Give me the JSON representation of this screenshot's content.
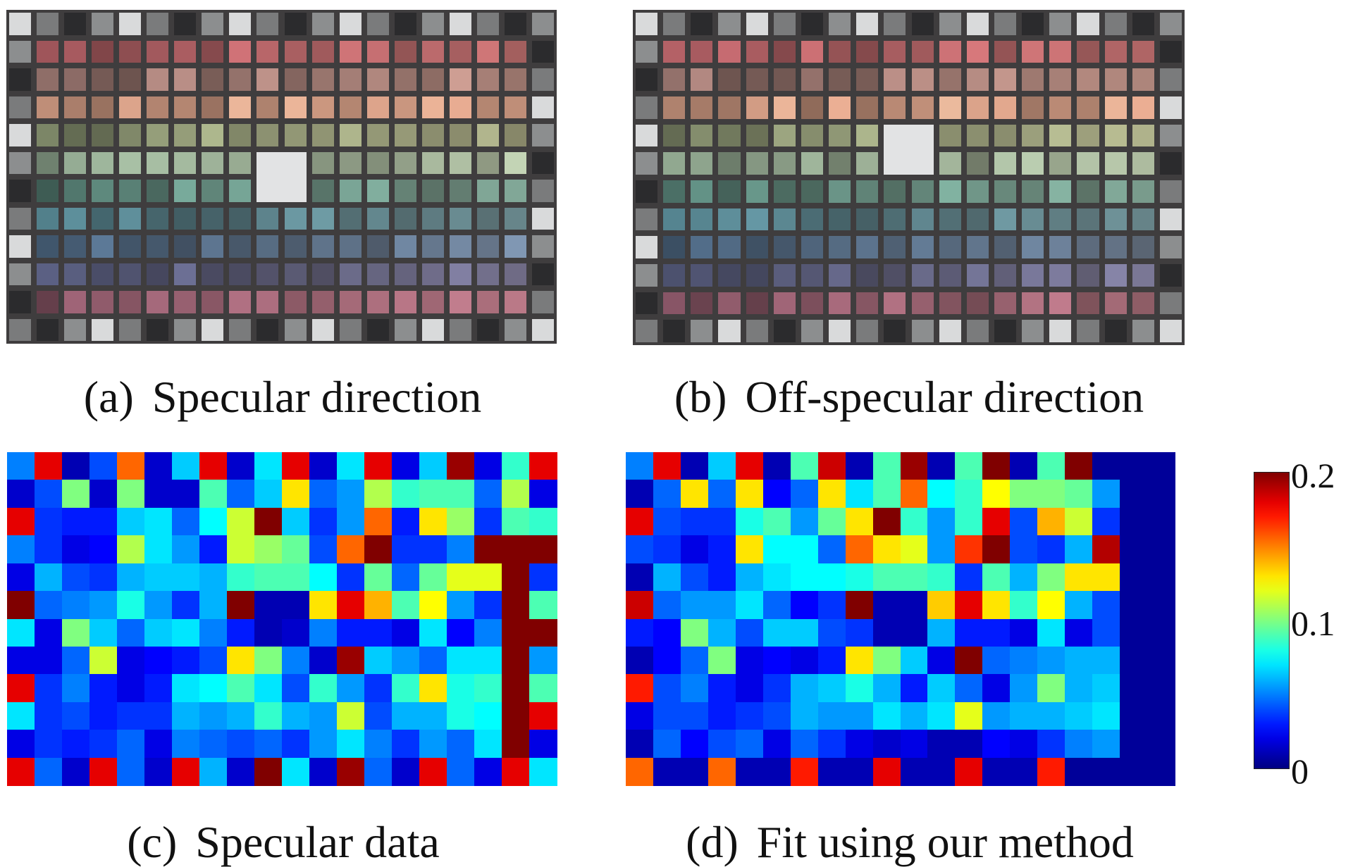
{
  "panels": [
    {
      "label": "(a)",
      "title": "Specular direction"
    },
    {
      "label": "(b)",
      "title": "Off-specular direction"
    },
    {
      "label": "(c)",
      "title": "Specular data"
    },
    {
      "label": "(d)",
      "title": "Fit using our method"
    }
  ],
  "colorbar": {
    "ticks": [
      "0.2",
      "0.1",
      "0"
    ],
    "range": [
      0,
      0.2
    ],
    "colormap": "jet"
  },
  "chart_data": [
    {
      "type": "heatmap",
      "title": "(c) Specular data",
      "rows": 12,
      "cols": 20,
      "vlim": [
        0,
        0.2
      ],
      "values": [
        [
          0.05,
          0.18,
          0.01,
          0.04,
          0.155,
          0.015,
          0.065,
          0.18,
          0.015,
          0.07,
          0.18,
          0.015,
          0.07,
          0.18,
          0.02,
          0.065,
          0.195,
          0.02,
          0.085,
          0.18
        ],
        [
          0.015,
          0.04,
          0.1,
          0.015,
          0.1,
          0.015,
          0.015,
          0.09,
          0.045,
          0.065,
          0.13,
          0.045,
          0.055,
          0.11,
          0.085,
          0.09,
          0.09,
          0.045,
          0.11,
          0.02
        ],
        [
          0.18,
          0.035,
          0.03,
          0.03,
          0.065,
          0.07,
          0.045,
          0.075,
          0.115,
          0.2,
          0.065,
          0.035,
          0.055,
          0.155,
          0.03,
          0.13,
          0.105,
          0.035,
          0.09,
          0.085
        ],
        [
          0.05,
          0.035,
          0.02,
          0.025,
          0.11,
          0.07,
          0.055,
          0.03,
          0.115,
          0.105,
          0.095,
          0.04,
          0.155,
          0.2,
          0.035,
          0.035,
          0.05,
          0.2,
          0.2,
          0.2
        ],
        [
          0.02,
          0.06,
          0.04,
          0.035,
          0.06,
          0.065,
          0.065,
          0.06,
          0.085,
          0.09,
          0.09,
          0.075,
          0.035,
          0.095,
          0.045,
          0.095,
          0.12,
          0.12,
          0.2,
          0.035
        ],
        [
          0.2,
          0.045,
          0.05,
          0.055,
          0.08,
          0.055,
          0.035,
          0.06,
          0.2,
          0.01,
          0.01,
          0.13,
          0.18,
          0.14,
          0.09,
          0.125,
          0.055,
          0.035,
          0.2,
          0.09
        ],
        [
          0.07,
          0.02,
          0.1,
          0.065,
          0.045,
          0.065,
          0.07,
          0.05,
          0.03,
          0.01,
          0.015,
          0.05,
          0.03,
          0.03,
          0.02,
          0.07,
          0.025,
          0.05,
          0.2,
          0.2
        ],
        [
          0.02,
          0.02,
          0.045,
          0.115,
          0.02,
          0.025,
          0.03,
          0.04,
          0.13,
          0.1,
          0.05,
          0.015,
          0.195,
          0.065,
          0.055,
          0.045,
          0.07,
          0.07,
          0.2,
          0.055
        ],
        [
          0.18,
          0.035,
          0.05,
          0.03,
          0.02,
          0.03,
          0.07,
          0.075,
          0.09,
          0.07,
          0.04,
          0.085,
          0.055,
          0.035,
          0.085,
          0.13,
          0.08,
          0.085,
          0.2,
          0.09
        ],
        [
          0.07,
          0.035,
          0.04,
          0.03,
          0.035,
          0.035,
          0.06,
          0.055,
          0.06,
          0.085,
          0.06,
          0.055,
          0.115,
          0.04,
          0.06,
          0.06,
          0.08,
          0.075,
          0.2,
          0.18
        ],
        [
          0.02,
          0.035,
          0.03,
          0.035,
          0.045,
          0.02,
          0.05,
          0.045,
          0.04,
          0.045,
          0.035,
          0.055,
          0.07,
          0.05,
          0.035,
          0.055,
          0.045,
          0.07,
          0.2,
          0.02
        ],
        [
          0.18,
          0.045,
          0.015,
          0.18,
          0.045,
          0.015,
          0.18,
          0.06,
          0.015,
          0.2,
          0.07,
          0.015,
          0.195,
          0.045,
          0.015,
          0.18,
          0.045,
          0.02,
          0.18,
          0.07
        ]
      ]
    },
    {
      "type": "heatmap",
      "title": "(d) Fit using our method",
      "rows": 12,
      "cols": 20,
      "vlim": [
        0,
        0.2
      ],
      "values": [
        [
          0.05,
          0.18,
          0.01,
          0.065,
          0.18,
          0.01,
          0.09,
          0.185,
          0.01,
          0.09,
          0.195,
          0.01,
          0.09,
          0.2,
          0.01,
          0.09,
          0.2,
          0.005,
          0.005,
          0.005
        ],
        [
          0.01,
          0.045,
          0.13,
          0.045,
          0.13,
          0.025,
          0.045,
          0.13,
          0.07,
          0.09,
          0.155,
          0.075,
          0.085,
          0.125,
          0.1,
          0.1,
          0.095,
          0.055,
          0.005,
          0.005
        ],
        [
          0.18,
          0.04,
          0.035,
          0.035,
          0.08,
          0.09,
          0.055,
          0.095,
          0.13,
          0.2,
          0.085,
          0.055,
          0.085,
          0.18,
          0.04,
          0.14,
          0.115,
          0.035,
          0.005,
          0.005
        ],
        [
          0.04,
          0.035,
          0.02,
          0.03,
          0.13,
          0.075,
          0.075,
          0.045,
          0.155,
          0.13,
          0.12,
          0.055,
          0.165,
          0.2,
          0.04,
          0.035,
          0.06,
          0.19,
          0.005,
          0.005
        ],
        [
          0.01,
          0.06,
          0.04,
          0.03,
          0.06,
          0.07,
          0.075,
          0.075,
          0.08,
          0.09,
          0.09,
          0.085,
          0.035,
          0.09,
          0.06,
          0.1,
          0.13,
          0.13,
          0.005,
          0.005
        ],
        [
          0.185,
          0.045,
          0.055,
          0.055,
          0.07,
          0.045,
          0.025,
          0.035,
          0.2,
          0.01,
          0.01,
          0.135,
          0.18,
          0.13,
          0.085,
          0.125,
          0.06,
          0.04,
          0.005,
          0.005
        ],
        [
          0.03,
          0.025,
          0.1,
          0.06,
          0.04,
          0.065,
          0.065,
          0.04,
          0.035,
          0.01,
          0.01,
          0.06,
          0.03,
          0.03,
          0.02,
          0.07,
          0.02,
          0.04,
          0.005,
          0.005
        ],
        [
          0.01,
          0.025,
          0.045,
          0.1,
          0.02,
          0.025,
          0.02,
          0.03,
          0.13,
          0.1,
          0.065,
          0.02,
          0.2,
          0.045,
          0.05,
          0.055,
          0.06,
          0.06,
          0.005,
          0.005
        ],
        [
          0.17,
          0.04,
          0.05,
          0.03,
          0.02,
          0.035,
          0.06,
          0.065,
          0.08,
          0.06,
          0.03,
          0.065,
          0.045,
          0.02,
          0.055,
          0.1,
          0.06,
          0.065,
          0.005,
          0.005
        ],
        [
          0.02,
          0.04,
          0.04,
          0.03,
          0.035,
          0.04,
          0.06,
          0.055,
          0.055,
          0.07,
          0.06,
          0.07,
          0.12,
          0.055,
          0.06,
          0.06,
          0.065,
          0.07,
          0.005,
          0.005
        ],
        [
          0.01,
          0.045,
          0.025,
          0.04,
          0.045,
          0.02,
          0.045,
          0.035,
          0.02,
          0.015,
          0.02,
          0.01,
          0.01,
          0.025,
          0.02,
          0.035,
          0.05,
          0.055,
          0.005,
          0.005
        ],
        [
          0.155,
          0.01,
          0.01,
          0.155,
          0.01,
          0.01,
          0.17,
          0.01,
          0.01,
          0.18,
          0.01,
          0.01,
          0.18,
          0.01,
          0.01,
          0.17,
          0.005,
          0.005,
          0.005,
          0.005
        ]
      ]
    }
  ]
}
